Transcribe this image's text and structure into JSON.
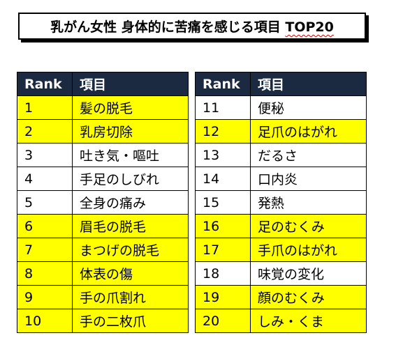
{
  "title": {
    "main": "乳がん女性 身体的に苦痛を感じる項目 ",
    "accent": "TOP20"
  },
  "headers": {
    "rank": "Rank",
    "item": "項目"
  },
  "colors": {
    "header_bg": "#1b2a41",
    "highlight": "#ffff00",
    "plain": "#ffffff"
  },
  "left_rows": [
    {
      "rank": "1",
      "item": "髪の脱毛",
      "highlight": true
    },
    {
      "rank": "2",
      "item": "乳房切除",
      "highlight": true
    },
    {
      "rank": "3",
      "item": "吐き気・嘔吐",
      "highlight": false
    },
    {
      "rank": "4",
      "item": "手足のしびれ",
      "highlight": false
    },
    {
      "rank": "5",
      "item": "全身の痛み",
      "highlight": false
    },
    {
      "rank": "6",
      "item": "眉毛の脱毛",
      "highlight": true
    },
    {
      "rank": "7",
      "item": "まつげの脱毛",
      "highlight": true
    },
    {
      "rank": "8",
      "item": "体表の傷",
      "highlight": true
    },
    {
      "rank": "9",
      "item": "手の爪割れ",
      "highlight": true
    },
    {
      "rank": "10",
      "item": "手の二枚爪",
      "highlight": true
    }
  ],
  "right_rows": [
    {
      "rank": "11",
      "item": "便秘",
      "highlight": false
    },
    {
      "rank": "12",
      "item": "足爪のはがれ",
      "highlight": true
    },
    {
      "rank": "13",
      "item": "だるさ",
      "highlight": false
    },
    {
      "rank": "14",
      "item": "口内炎",
      "highlight": false
    },
    {
      "rank": "15",
      "item": "発熱",
      "highlight": false
    },
    {
      "rank": "16",
      "item": "足のむくみ",
      "highlight": true
    },
    {
      "rank": "17",
      "item": "手爪のはがれ",
      "highlight": true
    },
    {
      "rank": "18",
      "item": "味覚の変化",
      "highlight": false
    },
    {
      "rank": "19",
      "item": "顔のむくみ",
      "highlight": true
    },
    {
      "rank": "20",
      "item": "しみ・くま",
      "highlight": true
    }
  ]
}
